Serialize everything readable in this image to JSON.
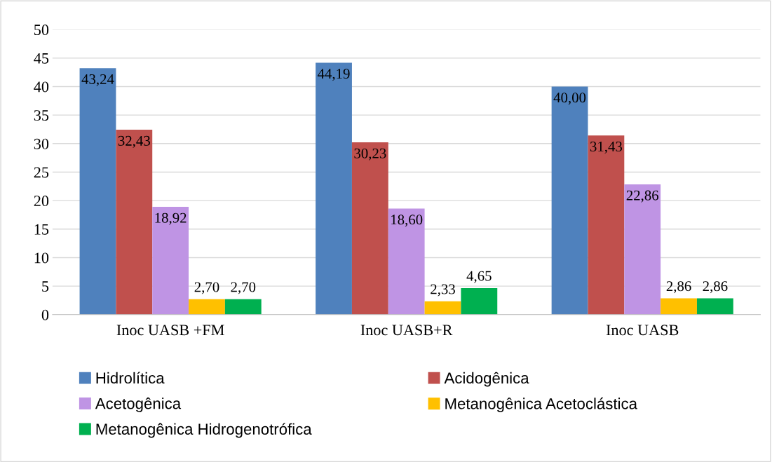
{
  "chart_data": {
    "type": "bar",
    "categories": [
      "Inoc UASB +FM",
      "Inoc UASB+R",
      "Inoc UASB"
    ],
    "series": [
      {
        "name": "Hidrolítica",
        "color": "#4f81bd",
        "values": [
          43.24,
          44.19,
          40.0
        ],
        "value_labels": [
          "43,24",
          "44,19",
          "40,00"
        ]
      },
      {
        "name": "Acidogênica",
        "color": "#c0504d",
        "values": [
          32.43,
          30.23,
          31.43
        ],
        "value_labels": [
          "32,43",
          "30,23",
          "31,43"
        ]
      },
      {
        "name": "Acetogênica",
        "color": "#bf94e4",
        "values": [
          18.92,
          18.6,
          22.86
        ],
        "value_labels": [
          "18,92",
          "18,60",
          "22,86"
        ]
      },
      {
        "name": "Metanogênica Acetoclástica",
        "color": "#ffc000",
        "values": [
          2.7,
          2.33,
          2.86
        ],
        "value_labels": [
          "2,70",
          "2,33",
          "2,86"
        ]
      },
      {
        "name": "Metanogênica Hidrogenotrófica",
        "color": "#00b050",
        "values": [
          2.7,
          4.65,
          2.86
        ],
        "value_labels": [
          "2,70",
          "4,65",
          "2,86"
        ]
      }
    ],
    "ylim": [
      0,
      50
    ],
    "yticks": [
      0,
      5,
      10,
      15,
      20,
      25,
      30,
      35,
      40,
      45,
      50
    ],
    "grid": "y",
    "legend": "bottom"
  }
}
